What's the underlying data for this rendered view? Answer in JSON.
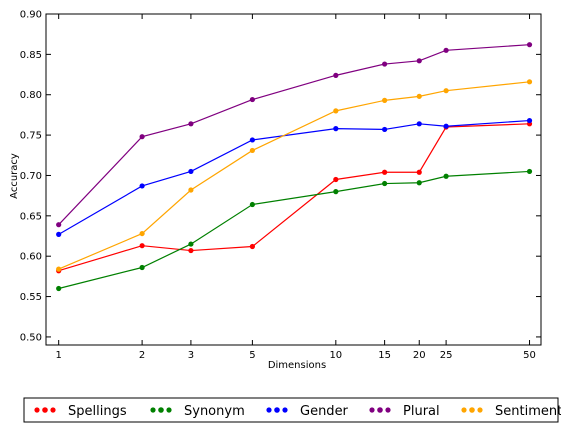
{
  "chart_data": {
    "type": "line",
    "title": "",
    "xlabel": "Dimensions",
    "ylabel": "Accuracy",
    "x": [
      1,
      2,
      3,
      5,
      10,
      15,
      20,
      25,
      50
    ],
    "x_tick_labels": [
      "1",
      "2",
      "3",
      "5",
      "10",
      "15",
      "20",
      "25",
      "50"
    ],
    "x_scale": "log",
    "xlim": [
      0.9,
      55
    ],
    "ylim": [
      0.49,
      0.9
    ],
    "y_ticks": [
      0.5,
      0.55,
      0.6,
      0.65,
      0.7,
      0.75,
      0.8,
      0.85,
      0.9
    ],
    "y_tick_labels": [
      "0.50",
      "0.55",
      "0.60",
      "0.65",
      "0.70",
      "0.75",
      "0.80",
      "0.85",
      "0.90"
    ],
    "grid": false,
    "legend_position": "bottom",
    "series": [
      {
        "name": "Spellings",
        "color": "#ff0000",
        "values": [
          0.582,
          0.613,
          0.607,
          0.612,
          0.695,
          0.704,
          0.704,
          0.76,
          0.764
        ]
      },
      {
        "name": "Synonym",
        "color": "#008000",
        "values": [
          0.56,
          0.586,
          0.615,
          0.664,
          0.68,
          0.69,
          0.691,
          0.699,
          0.705
        ]
      },
      {
        "name": "Gender",
        "color": "#0000ff",
        "values": [
          0.627,
          0.687,
          0.705,
          0.744,
          0.758,
          0.757,
          0.764,
          0.761,
          0.768
        ]
      },
      {
        "name": "Plural",
        "color": "#800080",
        "values": [
          0.639,
          0.748,
          0.764,
          0.794,
          0.824,
          0.838,
          0.842,
          0.855,
          0.862
        ]
      },
      {
        "name": "Sentiment",
        "color": "#ffa500",
        "values": [
          0.584,
          0.628,
          0.682,
          0.731,
          0.78,
          0.793,
          0.798,
          0.805,
          0.816
        ]
      }
    ]
  }
}
